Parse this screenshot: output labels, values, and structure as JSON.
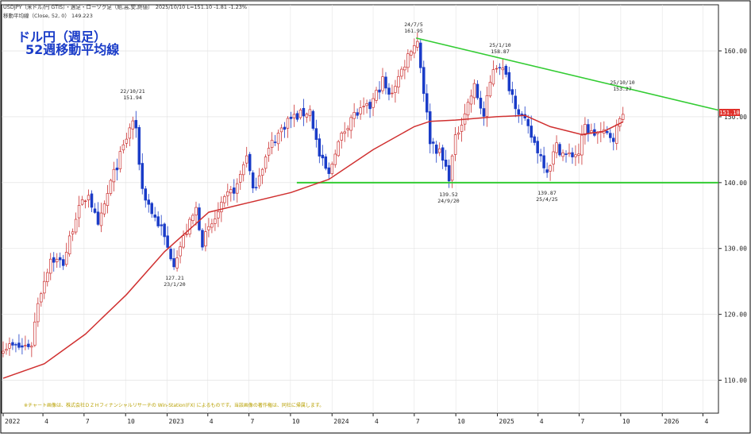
{
  "header": {
    "symbol_line": "USDJPY（米ドル/円 GTIS）・週足・ローソク足（始,高,安,終値）　2025/10/10 L=151.10 -1.81 -1.23%",
    "ma_line": "移動平均線（Close, 52, 0） 149.223"
  },
  "title": {
    "line1": "ドル円（週足）",
    "line2": "52週移動平均線"
  },
  "footnote": "※チャート画像は、株式会社ＤＺＨフィナンシャルリサーチの Win-Station(FX) によるものです。当該画像の著作権は、同社に帰属します。",
  "price_tag": "151.10",
  "colors": {
    "up_candle": "#cc3333",
    "down_candle": "#1a3cc8",
    "ma_line": "#d03030",
    "trend_line": "#33cc33",
    "title_text": "#1a3cc8",
    "price_tag_bg": "#e0302b"
  },
  "chart_data": {
    "type": "candlestick",
    "period": "weekly",
    "instrument": "USDJPY",
    "ylim": [
      105,
      167
    ],
    "y_ticks": [
      "110.00",
      "120.00",
      "130.00",
      "140.00",
      "150.00",
      "160.00"
    ],
    "x_ticks": [
      "2022",
      "4",
      "7",
      "10",
      "2023",
      "4",
      "7",
      "10",
      "2024",
      "4",
      "7",
      "10",
      "2025",
      "4",
      "7",
      "10",
      "2026",
      "4"
    ],
    "close_path": [
      [
        "2022-01-03",
        115.2
      ],
      [
        "2022-02-14",
        115.0
      ],
      [
        "2022-03-07",
        115.5
      ],
      [
        "2022-03-21",
        122.0
      ],
      [
        "2022-04-18",
        128.5
      ],
      [
        "2022-05-16",
        127.8
      ],
      [
        "2022-06-13",
        135.0
      ],
      [
        "2022-07-11",
        138.5
      ],
      [
        "2022-08-01",
        133.0
      ],
      [
        "2022-08-29",
        140.0
      ],
      [
        "2022-09-19",
        144.0
      ],
      [
        "2022-10-17",
        149.5
      ],
      [
        "2022-10-24",
        147.5
      ],
      [
        "2022-11-07",
        139.0
      ],
      [
        "2022-11-28",
        135.5
      ],
      [
        "2022-12-19",
        133.0
      ],
      [
        "2023-01-02",
        130.0
      ],
      [
        "2023-01-16",
        128.0
      ],
      [
        "2023-02-06",
        131.5
      ],
      [
        "2023-03-06",
        136.0
      ],
      [
        "2023-03-20",
        131.0
      ],
      [
        "2023-04-17",
        134.5
      ],
      [
        "2023-05-15",
        138.0
      ],
      [
        "2023-06-05",
        139.5
      ],
      [
        "2023-06-26",
        144.5
      ],
      [
        "2023-07-10",
        138.5
      ],
      [
        "2023-07-24",
        141.5
      ],
      [
        "2023-08-21",
        146.0
      ],
      [
        "2023-09-25",
        149.5
      ],
      [
        "2023-10-30",
        150.5
      ],
      [
        "2023-11-13",
        151.0
      ],
      [
        "2023-12-04",
        144.0
      ],
      [
        "2023-12-25",
        141.0
      ],
      [
        "2024-01-08",
        145.0
      ],
      [
        "2024-02-12",
        150.0
      ],
      [
        "2024-03-25",
        151.5
      ],
      [
        "2024-04-22",
        155.5
      ],
      [
        "2024-05-06",
        153.0
      ],
      [
        "2024-06-03",
        157.0
      ],
      [
        "2024-06-24",
        160.5
      ],
      [
        "2024-07-08",
        161.5
      ],
      [
        "2024-07-22",
        154.0
      ],
      [
        "2024-08-05",
        146.5
      ],
      [
        "2024-08-26",
        144.5
      ],
      [
        "2024-09-16",
        141.0
      ],
      [
        "2024-09-30",
        146.5
      ],
      [
        "2024-10-14",
        149.5
      ],
      [
        "2024-11-11",
        154.5
      ],
      [
        "2024-12-02",
        150.0
      ],
      [
        "2024-12-23",
        157.5
      ],
      [
        "2025-01-06",
        158.0
      ],
      [
        "2025-01-20",
        156.0
      ],
      [
        "2025-02-10",
        152.0
      ],
      [
        "2025-03-10",
        148.0
      ],
      [
        "2025-04-07",
        144.0
      ],
      [
        "2025-04-21",
        142.0
      ],
      [
        "2025-05-12",
        145.5
      ],
      [
        "2025-06-02",
        144.0
      ],
      [
        "2025-06-30",
        144.5
      ],
      [
        "2025-07-14",
        148.5
      ],
      [
        "2025-07-28",
        147.5
      ],
      [
        "2025-08-18",
        147.5
      ],
      [
        "2025-09-15",
        147.0
      ],
      [
        "2025-09-29",
        149.5
      ],
      [
        "2025-10-06",
        151.1
      ]
    ],
    "ma_52": [
      [
        "2022-01-03",
        110.3
      ],
      [
        "2022-04-04",
        112.5
      ],
      [
        "2022-07-04",
        117.0
      ],
      [
        "2022-10-03",
        123.0
      ],
      [
        "2022-12-26",
        129.5
      ],
      [
        "2023-04-03",
        135.5
      ],
      [
        "2023-07-03",
        137.0
      ],
      [
        "2023-10-02",
        138.5
      ],
      [
        "2023-12-25",
        140.5
      ],
      [
        "2024-04-01",
        145.0
      ],
      [
        "2024-07-01",
        148.5
      ],
      [
        "2024-08-05",
        149.3
      ],
      [
        "2024-09-30",
        149.5
      ],
      [
        "2024-12-30",
        150.0
      ],
      [
        "2025-03-03",
        150.2
      ],
      [
        "2025-04-28",
        148.5
      ],
      [
        "2025-07-07",
        147.3
      ],
      [
        "2025-08-25",
        147.8
      ],
      [
        "2025-10-06",
        149.223
      ]
    ],
    "annotations": [
      {
        "date_label": "22/10/21",
        "value": "151.94"
      },
      {
        "date_label": "23/1/20",
        "value": "127.21"
      },
      {
        "date_label": "24/7/5",
        "value": "161.95"
      },
      {
        "date_label": "24/9/20",
        "value": "139.52"
      },
      {
        "date_label": "25/1/10",
        "value": "158.87"
      },
      {
        "date_label": "25/4/25",
        "value": "139.87"
      },
      {
        "date_label": "25/10/10",
        "value": "153.27"
      }
    ],
    "support_line": 140.0,
    "resistance_line": [
      [
        "2024-07-05",
        161.95
      ],
      [
        "2026-04-27",
        151.0
      ]
    ],
    "last_close": 151.1
  }
}
